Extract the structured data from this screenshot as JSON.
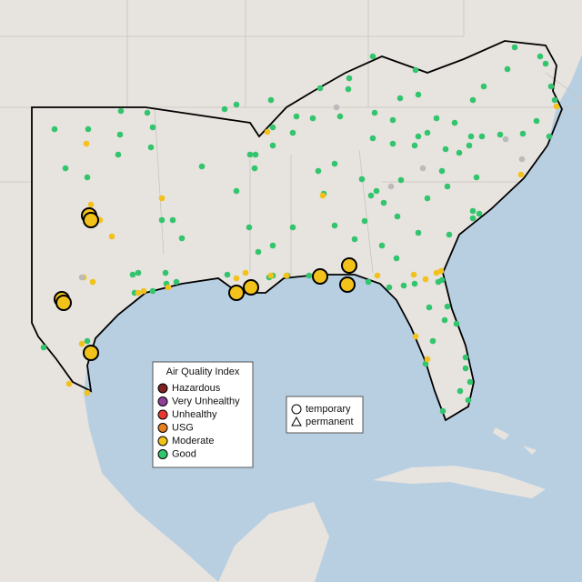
{
  "legend": {
    "title": "Air Quality Index",
    "items": [
      {
        "label": "Hazardous",
        "color": "#7e2323"
      },
      {
        "label": "Very Unhealthy",
        "color": "#8f3f97"
      },
      {
        "label": "Unhealthy",
        "color": "#e8392f"
      },
      {
        "label": "USG",
        "color": "#e67e22"
      },
      {
        "label": "Moderate",
        "color": "#f2c21b"
      },
      {
        "label": "Good",
        "color": "#33c46e"
      }
    ]
  },
  "shape_legend": {
    "items": [
      "temporary",
      "permanent"
    ]
  }
}
